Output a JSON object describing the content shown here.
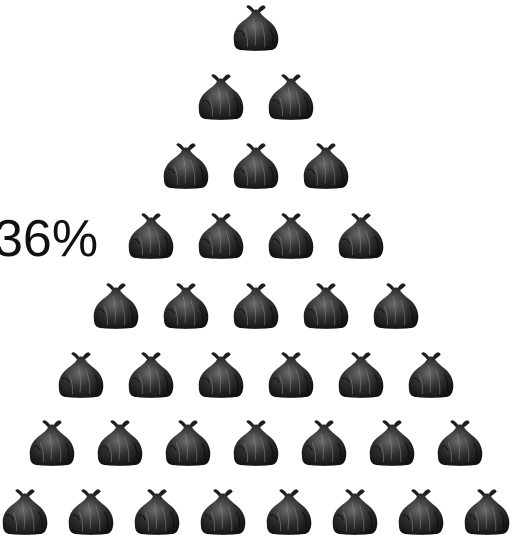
{
  "label": "36%"
}
